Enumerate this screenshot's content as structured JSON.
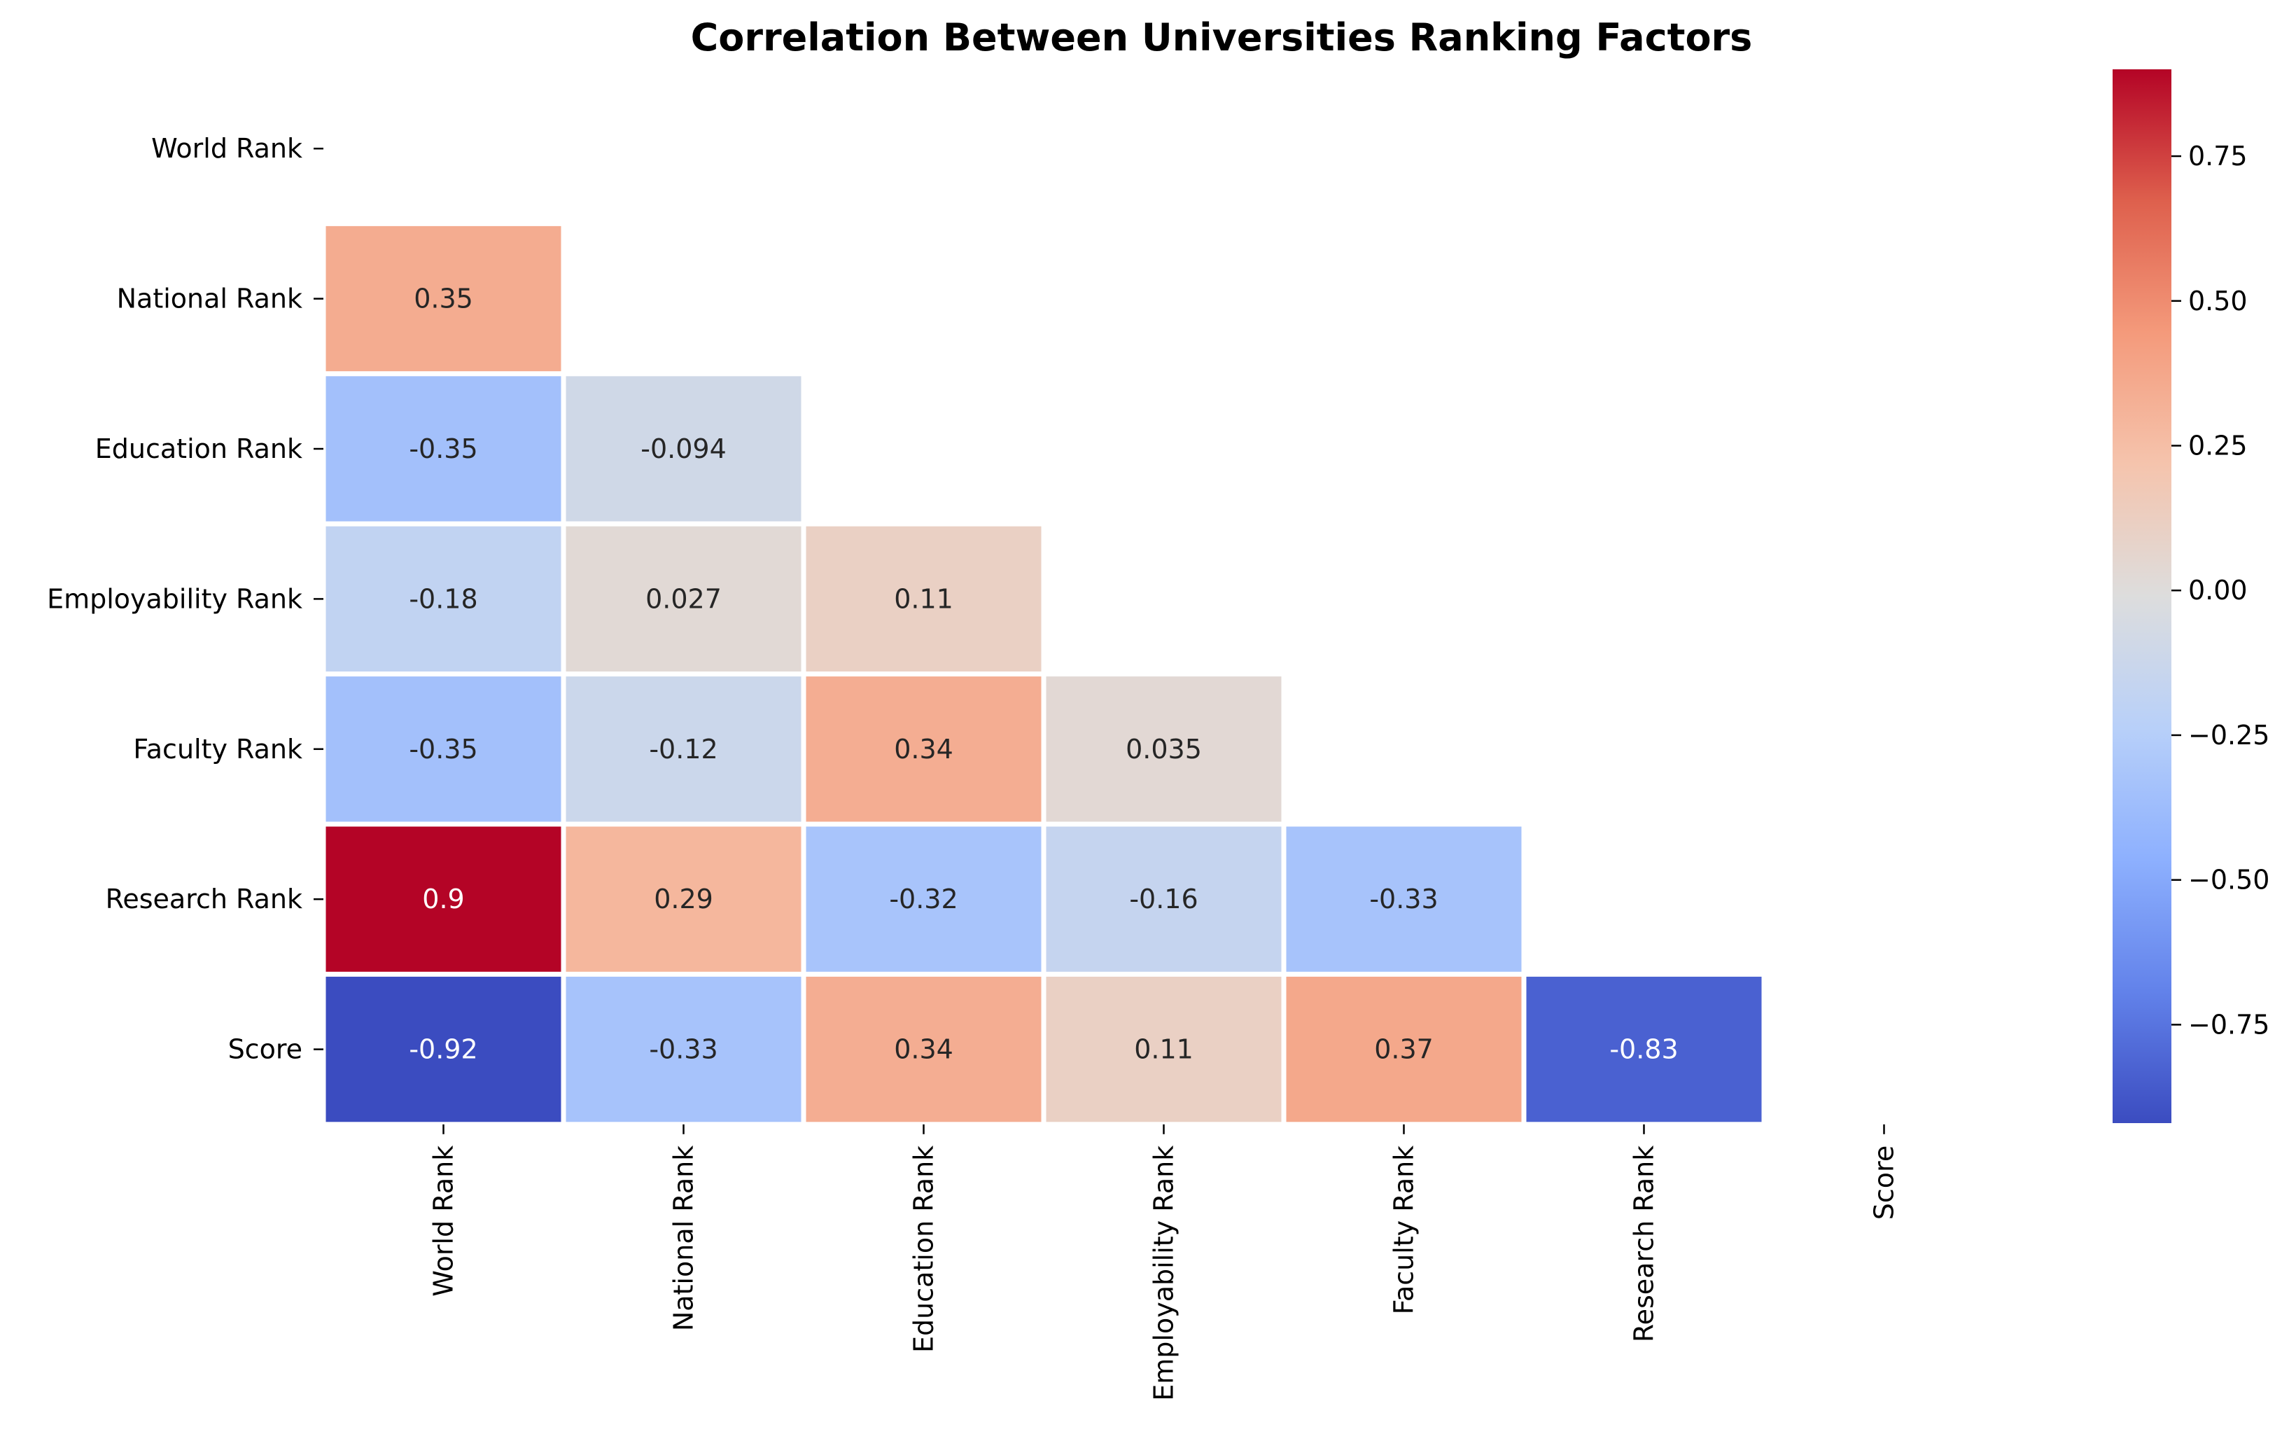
{
  "chart_data": {
    "type": "heatmap",
    "title": "Correlation Between Universities Ranking Factors",
    "xlabel": "",
    "ylabel": "",
    "rows": [
      "World Rank",
      "National Rank",
      "Education Rank",
      "Employability Rank",
      "Faculty Rank",
      "Research Rank",
      "Score"
    ],
    "columns": [
      "World Rank",
      "National Rank",
      "Education Rank",
      "Employability Rank",
      "Faculty Rank",
      "Research Rank",
      "Score"
    ],
    "mask": "upper-triangle-including-diagonal",
    "values": [
      [
        null,
        null,
        null,
        null,
        null,
        null,
        null
      ],
      [
        0.35,
        null,
        null,
        null,
        null,
        null,
        null
      ],
      [
        -0.35,
        -0.094,
        null,
        null,
        null,
        null,
        null
      ],
      [
        -0.18,
        0.027,
        0.11,
        null,
        null,
        null,
        null
      ],
      [
        -0.35,
        -0.12,
        0.34,
        0.035,
        null,
        null,
        null
      ],
      [
        0.9,
        0.29,
        -0.32,
        -0.16,
        -0.33,
        null,
        null
      ],
      [
        -0.92,
        -0.33,
        0.34,
        0.11,
        0.37,
        -0.83,
        null
      ]
    ],
    "labels": [
      [
        null,
        null,
        null,
        null,
        null,
        null,
        null
      ],
      [
        "0.35",
        null,
        null,
        null,
        null,
        null,
        null
      ],
      [
        "-0.35",
        "-0.094",
        null,
        null,
        null,
        null,
        null
      ],
      [
        "-0.18",
        "0.027",
        "0.11",
        null,
        null,
        null,
        null
      ],
      [
        "-0.35",
        "-0.12",
        "0.34",
        "0.035",
        null,
        null,
        null
      ],
      [
        "0.9",
        "0.29",
        "-0.32",
        "-0.16",
        "-0.33",
        null,
        null
      ],
      [
        "-0.92",
        "-0.33",
        "0.34",
        "0.11",
        "0.37",
        "-0.83",
        null
      ]
    ],
    "colormap": "coolwarm",
    "vmin": -0.92,
    "vmax": 0.9,
    "colorbar": {
      "ticks": [
        0.75,
        0.5,
        0.25,
        0.0,
        -0.25,
        -0.5,
        -0.75
      ],
      "tick_labels": [
        "0.75",
        "0.50",
        "0.25",
        "0.00",
        "−0.25",
        "−0.50",
        "−0.75"
      ]
    },
    "grid": false,
    "cell_border_color": "#ffffff"
  }
}
